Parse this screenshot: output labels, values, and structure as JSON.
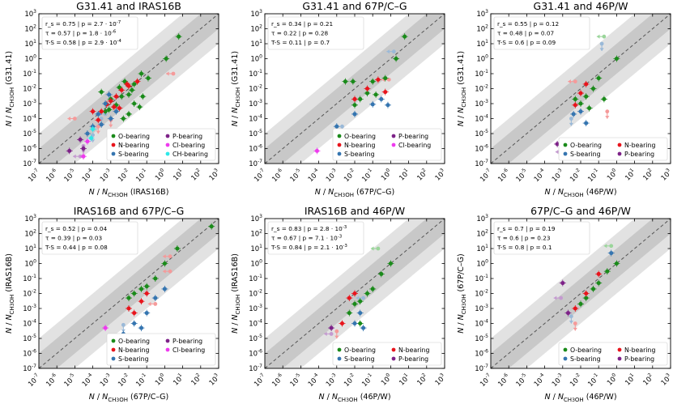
{
  "chart_data": [
    {
      "type": "scatter",
      "title": "G31.41 and IRAS16B",
      "xlabel": "N / N_CH3OH (IRAS16B)",
      "ylabel": "N / N_CH3OH (G31.41)",
      "x_source": "IRAS16B",
      "y_source": "G31.41",
      "xlim": [
        1e-07,
        1000
      ],
      "ylim": [
        1e-07,
        1000
      ],
      "scale": "log",
      "stats": [
        "r_s = 0.75  |  p = 2.7 · 10^-7",
        "τ = 0.57  |  p = 1.8 · 10^-6",
        "T-S = 0.58  |  p = 2.9 · 10^-4"
      ],
      "legend": [
        "O-bearing",
        "N-bearing",
        "S-bearing",
        "P-bearing",
        "Cl-bearing",
        "CH-bearing"
      ],
      "legend_position": "lower-right",
      "points": [
        {
          "x": 6,
          "y": 30,
          "g": "O"
        },
        {
          "x": 1.2,
          "y": 1,
          "g": "O"
        },
        {
          "x": 0.12,
          "y": 0.05,
          "g": "O"
        },
        {
          "x": 0.05,
          "y": 0.1,
          "g": "O"
        },
        {
          "x": 0.02,
          "y": 0.02,
          "g": "O"
        },
        {
          "x": 0.01,
          "y": 0.004,
          "g": "O"
        },
        {
          "x": 0.006,
          "y": 0.03,
          "g": "O"
        },
        {
          "x": 0.004,
          "y": 0.003,
          "g": "O"
        },
        {
          "x": 0.003,
          "y": 0.012,
          "g": "O"
        },
        {
          "x": 0.002,
          "y": 0.0008,
          "g": "O"
        },
        {
          "x": 0.001,
          "y": 0.002,
          "g": "O"
        },
        {
          "x": 0.0008,
          "y": 0.0004,
          "g": "O"
        },
        {
          "x": 0.0005,
          "y": 0.0003,
          "g": "O"
        },
        {
          "x": 0.02,
          "y": 0.001,
          "g": "O"
        },
        {
          "x": 0.01,
          "y": 0.0002,
          "g": "O"
        },
        {
          "x": 0.0003,
          "y": 0.006,
          "g": "O"
        },
        {
          "x": 0.005,
          "y": 0.0001,
          "g": "O"
        },
        {
          "x": 0.06,
          "y": 0.003,
          "g": "O"
        },
        {
          "x": 0.04,
          "y": 0.0006,
          "g": "O"
        },
        {
          "x": 0.015,
          "y": 0.008,
          "g": "O"
        },
        {
          "x": 0.03,
          "y": 0.03,
          "g": "N"
        },
        {
          "x": 0.01,
          "y": 0.015,
          "g": "N"
        },
        {
          "x": 0.004,
          "y": 0.008,
          "g": "N"
        },
        {
          "x": 0.002,
          "y": 0.003,
          "g": "N"
        },
        {
          "x": 0.001,
          "y": 0.0015,
          "g": "N"
        },
        {
          "x": 0.0006,
          "y": 0.0009,
          "g": "N"
        },
        {
          "x": 0.0003,
          "y": 0.0003,
          "g": "N"
        },
        {
          "x": 0.0002,
          "y": 8e-05,
          "g": "N"
        },
        {
          "x": 0.003,
          "y": 0.0005,
          "g": "N"
        },
        {
          "x": 0.008,
          "y": 0.02,
          "g": "N"
        },
        {
          "x": 0.0015,
          "y": 0.0006,
          "g": "N"
        },
        {
          "x": 0.0001,
          "y": 0.0003,
          "g": "N"
        },
        {
          "x": 0.0008,
          "y": 0.004,
          "g": "S"
        },
        {
          "x": 0.0005,
          "y": 0.001,
          "g": "S"
        },
        {
          "x": 0.0002,
          "y": 0.0002,
          "g": "S"
        },
        {
          "x": 0.002,
          "y": 0.0003,
          "g": "S"
        },
        {
          "x": 0.0003,
          "y": 4e-05,
          "g": "S"
        },
        {
          "x": 0.001,
          "y": 0.0001,
          "g": "S"
        },
        {
          "x": 5e-05,
          "y": 1e-05,
          "g": "S"
        },
        {
          "x": 0.0001,
          "y": 3e-05,
          "g": "S"
        },
        {
          "x": 2e-05,
          "y": 4e-06,
          "g": "P"
        },
        {
          "x": 3e-05,
          "y": 1e-06,
          "g": "P"
        },
        {
          "x": 5e-06,
          "y": 7e-07,
          "g": "P"
        },
        {
          "x": 3e-05,
          "y": 3e-07,
          "g": "Cl"
        },
        {
          "x": 5e-05,
          "y": 3e-06,
          "g": "Cl"
        },
        {
          "x": 0.0001,
          "y": 2e-05,
          "g": "CH"
        },
        {
          "x": 8e-05,
          "y": 5e-06,
          "g": "CH"
        }
      ],
      "limits": [
        {
          "x": 3,
          "y": 0.1,
          "g": "N",
          "dir": "left"
        },
        {
          "x": 0.001,
          "y": 8e-05,
          "g": "N",
          "dir": "down"
        },
        {
          "x": 0.0002,
          "y": 3e-05,
          "g": "N",
          "dir": "down"
        },
        {
          "x": 1e-05,
          "y": 0.0001,
          "g": "N",
          "dir": "left"
        },
        {
          "x": 0.0003,
          "y": 0.0001,
          "g": "S",
          "dir": "down"
        },
        {
          "x": 0.0001,
          "y": 8e-06,
          "g": "S",
          "dir": "down"
        },
        {
          "x": 0.0005,
          "y": 0.0002,
          "g": "S",
          "dir": "left"
        },
        {
          "x": 3e-05,
          "y": 1.5e-06,
          "g": "P",
          "dir": "down"
        },
        {
          "x": 2e-05,
          "y": 3e-07,
          "g": "P",
          "dir": "left"
        }
      ]
    },
    {
      "type": "scatter",
      "title": "G31.41 and 67P/C–G",
      "xlabel": "N / N_CH3OH (67P/C–G)",
      "ylabel": "N / N_CH3OH (G31.41)",
      "x_source": "67P/C–G",
      "y_source": "G31.41",
      "xlim": [
        1e-07,
        1000
      ],
      "ylim": [
        1e-07,
        1000
      ],
      "scale": "log",
      "stats": [
        "r_s = 0.34  |  p = 0.21",
        "τ = 0.22  |  p = 0.28",
        "T-S = 0.11  |  p = 0.7"
      ],
      "legend": [
        "O-bearing",
        "N-bearing",
        "S-bearing",
        "P-bearing",
        "Cl-bearing"
      ],
      "legend_position": "lower-right",
      "points": [
        {
          "x": 6,
          "y": 30,
          "g": "O"
        },
        {
          "x": 2,
          "y": 1,
          "g": "O"
        },
        {
          "x": 0.5,
          "y": 0.05,
          "g": "O"
        },
        {
          "x": 0.1,
          "y": 0.03,
          "g": "O"
        },
        {
          "x": 0.05,
          "y": 0.005,
          "g": "O"
        },
        {
          "x": 0.008,
          "y": 0.03,
          "g": "O"
        },
        {
          "x": 0.02,
          "y": 0.002,
          "g": "O"
        },
        {
          "x": 0.003,
          "y": 0.03,
          "g": "O"
        },
        {
          "x": 0.01,
          "y": 0.0008,
          "g": "O"
        },
        {
          "x": 0.15,
          "y": 0.004,
          "g": "O"
        },
        {
          "x": 0.2,
          "y": 0.04,
          "g": "N"
        },
        {
          "x": 0.05,
          "y": 0.01,
          "g": "N"
        },
        {
          "x": 0.5,
          "y": 0.006,
          "g": "N"
        },
        {
          "x": 0.01,
          "y": 0.002,
          "g": "N"
        },
        {
          "x": 0.3,
          "y": 0.002,
          "g": "S"
        },
        {
          "x": 0.7,
          "y": 0.0008,
          "g": "S"
        },
        {
          "x": 0.1,
          "y": 0.0009,
          "g": "S"
        },
        {
          "x": 0.01,
          "y": 0.0002,
          "g": "S"
        },
        {
          "x": 0.003,
          "y": 1e-05,
          "g": "S"
        },
        {
          "x": 0.001,
          "y": 3e-05,
          "g": "S"
        },
        {
          "x": 8e-05,
          "y": 7e-07,
          "g": "Cl"
        }
      ],
      "limits": [
        {
          "x": 1.5,
          "y": 3,
          "g": "S",
          "dir": "left"
        },
        {
          "x": 0.8,
          "y": 0.04,
          "g": "N",
          "dir": "left"
        },
        {
          "x": 0.002,
          "y": 3e-05,
          "g": "S",
          "dir": "down"
        },
        {
          "x": 0.005,
          "y": 5e-06,
          "g": "S",
          "dir": "down"
        }
      ]
    },
    {
      "type": "scatter",
      "title": "G31.41 and 46P/W",
      "xlabel": "N / N_CH3OH (46P/W)",
      "ylabel": "N / N_CH3OH (G31.41)",
      "x_source": "46P/W",
      "y_source": "G31.41",
      "xlim": [
        1e-07,
        1000
      ],
      "ylim": [
        1e-07,
        1000
      ],
      "scale": "log",
      "stats": [
        "r_s = 0.55  |  p = 0.12",
        "τ = 0.48  |  p = 0.07",
        "T-S = 0.6  |  p = 0.09"
      ],
      "legend": [
        "O-bearing",
        "S-bearing",
        "N-bearing",
        "P-bearing"
      ],
      "legend_position": "lower-right",
      "points": [
        {
          "x": 1,
          "y": 1,
          "g": "O"
        },
        {
          "x": 0.1,
          "y": 0.05,
          "g": "O"
        },
        {
          "x": 0.05,
          "y": 0.01,
          "g": "O"
        },
        {
          "x": 0.02,
          "y": 0.003,
          "g": "O"
        },
        {
          "x": 0.01,
          "y": 0.001,
          "g": "O"
        },
        {
          "x": 0.005,
          "y": 0.002,
          "g": "O"
        },
        {
          "x": 0.03,
          "y": 0.0005,
          "g": "O"
        },
        {
          "x": 0.2,
          "y": 0.002,
          "g": "O"
        },
        {
          "x": 0.02,
          "y": 0.02,
          "g": "N"
        },
        {
          "x": 0.01,
          "y": 0.005,
          "g": "N"
        },
        {
          "x": 0.005,
          "y": 0.0008,
          "g": "N"
        },
        {
          "x": 0.01,
          "y": 0.0003,
          "g": "S"
        },
        {
          "x": 0.004,
          "y": 0.0002,
          "g": "S"
        },
        {
          "x": 0.02,
          "y": 5e-05,
          "g": "S"
        },
        {
          "x": 0.0005,
          "y": 2e-06,
          "g": "P"
        }
      ],
      "limits": [
        {
          "x": 0.2,
          "y": 30,
          "g": "O",
          "dir": "left"
        },
        {
          "x": 0.15,
          "y": 10,
          "g": "S",
          "dir": "down"
        },
        {
          "x": 0.005,
          "y": 0.03,
          "g": "N",
          "dir": "left"
        },
        {
          "x": 0.3,
          "y": 0.0003,
          "g": "N",
          "dir": "down"
        },
        {
          "x": 0.0008,
          "y": 1.5e-06,
          "g": "P",
          "dir": "down"
        },
        {
          "x": 0.001,
          "y": 6e-07,
          "g": "P",
          "dir": "left"
        },
        {
          "x": 0.003,
          "y": 0.0001,
          "g": "S",
          "dir": "down"
        }
      ]
    },
    {
      "type": "scatter",
      "title": "IRAS16B and 67P/C–G",
      "xlabel": "N / N_CH3OH (67P/C–G)",
      "ylabel": "N / N_CH3OH (IRAS16B)",
      "x_source": "67P/C–G",
      "y_source": "IRAS16B",
      "xlim": [
        1e-07,
        1000
      ],
      "ylim": [
        1e-07,
        1000
      ],
      "scale": "log",
      "stats": [
        "r_s = 0.52  |  p = 0.04",
        "τ = 0.39  |  p = 0.03",
        "T-S = 0.44  |  p = 0.08"
      ],
      "legend": [
        "O-bearing",
        "N-bearing",
        "S-bearing",
        "P-bearing",
        "Cl-bearing"
      ],
      "legend_position": "lower-right",
      "points": [
        {
          "x": 400,
          "y": 300,
          "g": "O"
        },
        {
          "x": 5,
          "y": 10,
          "g": "O"
        },
        {
          "x": 1,
          "y": 1,
          "g": "O"
        },
        {
          "x": 0.3,
          "y": 0.1,
          "g": "O"
        },
        {
          "x": 0.1,
          "y": 0.03,
          "g": "O"
        },
        {
          "x": 0.05,
          "y": 0.02,
          "g": "O"
        },
        {
          "x": 0.02,
          "y": 0.01,
          "g": "O"
        },
        {
          "x": 0.01,
          "y": 0.005,
          "g": "O"
        },
        {
          "x": 0.1,
          "y": 0.01,
          "g": "N"
        },
        {
          "x": 0.05,
          "y": 0.003,
          "g": "N"
        },
        {
          "x": 0.01,
          "y": 0.001,
          "g": "N"
        },
        {
          "x": 0.02,
          "y": 0.0005,
          "g": "N"
        },
        {
          "x": 1,
          "y": 0.02,
          "g": "S"
        },
        {
          "x": 0.3,
          "y": 0.005,
          "g": "S"
        },
        {
          "x": 0.1,
          "y": 0.0005,
          "g": "S"
        },
        {
          "x": 0.02,
          "y": 0.0001,
          "g": "S"
        },
        {
          "x": 0.05,
          "y": 5e-05,
          "g": "S"
        },
        {
          "x": 0.005,
          "y": 2e-05,
          "g": "S"
        },
        {
          "x": 0.0005,
          "y": 5e-05,
          "g": "Cl"
        }
      ],
      "limits": [
        {
          "x": 2,
          "y": 3,
          "g": "N",
          "dir": "left"
        },
        {
          "x": 2,
          "y": 0.3,
          "g": "N",
          "dir": "left"
        },
        {
          "x": 0.3,
          "y": 0.002,
          "g": "N",
          "dir": "left"
        },
        {
          "x": 0.005,
          "y": 8e-05,
          "g": "S",
          "dir": "down"
        }
      ]
    },
    {
      "type": "scatter",
      "title": "IRAS16B and 46P/W",
      "xlabel": "N / N_CH3OH (46P/W)",
      "ylabel": "N / N_CH3OH (IRAS16B)",
      "x_source": "46P/W",
      "y_source": "IRAS16B",
      "xlim": [
        1e-07,
        1000
      ],
      "ylim": [
        1e-07,
        1000
      ],
      "scale": "log",
      "stats": [
        "r_s = 0.83  |  p = 2.8 · 10^-3",
        "τ = 0.67  |  p = 7.1 · 10^-3",
        "T-S = 0.84  |  p = 2.1 · 10^-3"
      ],
      "legend": [
        "O-bearing",
        "S-bearing",
        "N-bearing",
        "P-bearing"
      ],
      "legend_position": "lower-right",
      "points": [
        {
          "x": 1,
          "y": 1,
          "g": "O"
        },
        {
          "x": 0.3,
          "y": 0.2,
          "g": "O"
        },
        {
          "x": 0.1,
          "y": 0.02,
          "g": "O"
        },
        {
          "x": 0.05,
          "y": 0.01,
          "g": "O"
        },
        {
          "x": 0.02,
          "y": 0.003,
          "g": "O"
        },
        {
          "x": 0.01,
          "y": 0.002,
          "g": "O"
        },
        {
          "x": 0.005,
          "y": 0.0005,
          "g": "O"
        },
        {
          "x": 0.02,
          "y": 0.0001,
          "g": "O"
        },
        {
          "x": 0.01,
          "y": 0.01,
          "g": "N"
        },
        {
          "x": 0.005,
          "y": 0.005,
          "g": "N"
        },
        {
          "x": 0.002,
          "y": 0.0001,
          "g": "N"
        },
        {
          "x": 0.02,
          "y": 0.0005,
          "g": "S"
        },
        {
          "x": 0.01,
          "y": 0.0001,
          "g": "S"
        },
        {
          "x": 0.03,
          "y": 5e-05,
          "g": "S"
        },
        {
          "x": 0.0005,
          "y": 5e-05,
          "g": "P"
        }
      ],
      "limits": [
        {
          "x": 0.2,
          "y": 10,
          "g": "O",
          "dir": "left"
        },
        {
          "x": 0.03,
          "y": 0.005,
          "g": "S",
          "dir": "left"
        },
        {
          "x": 0.001,
          "y": 3e-05,
          "g": "N",
          "dir": "down"
        },
        {
          "x": 0.0008,
          "y": 1.5e-06,
          "g": "P",
          "dir": "down"
        },
        {
          "x": 0.0005,
          "y": 2e-05,
          "g": "P",
          "dir": "left"
        }
      ]
    },
    {
      "type": "scatter",
      "title": "67P/C–G and 46P/W",
      "xlabel": "N / N_CH3OH (46P/W)",
      "ylabel": "N / N_CH3OH (67P/C–G)",
      "x_source": "46P/W",
      "y_source": "67P/C–G",
      "xlim": [
        1e-07,
        1000
      ],
      "ylim": [
        1e-07,
        1000
      ],
      "scale": "log",
      "stats": [
        "r_s = 0.7  |  p = 0.19",
        "τ = 0.6  |  p = 0.23",
        "T-S = 0.8  |  p = 0.1"
      ],
      "legend": [
        "O-bearing",
        "S-bearing",
        "N-bearing",
        "P-bearing"
      ],
      "legend_position": "lower-right",
      "points": [
        {
          "x": 1,
          "y": 1,
          "g": "O"
        },
        {
          "x": 0.3,
          "y": 0.3,
          "g": "O"
        },
        {
          "x": 0.1,
          "y": 0.05,
          "g": "O"
        },
        {
          "x": 0.05,
          "y": 0.02,
          "g": "O"
        },
        {
          "x": 0.02,
          "y": 0.005,
          "g": "O"
        },
        {
          "x": 0.01,
          "y": 0.002,
          "g": "O"
        },
        {
          "x": 0.1,
          "y": 0.2,
          "g": "N"
        },
        {
          "x": 0.02,
          "y": 0.01,
          "g": "N"
        },
        {
          "x": 0.005,
          "y": 0.001,
          "g": "N"
        },
        {
          "x": 0.5,
          "y": 5,
          "g": "S"
        },
        {
          "x": 0.001,
          "y": 0.05,
          "g": "P"
        },
        {
          "x": 0.002,
          "y": 0.0005,
          "g": "P"
        }
      ],
      "limits": [
        {
          "x": 0.5,
          "y": 15,
          "g": "O",
          "dir": "left"
        },
        {
          "x": 0.005,
          "y": 0.0001,
          "g": "N",
          "dir": "down"
        },
        {
          "x": 0.0008,
          "y": 0.005,
          "g": "P",
          "dir": "left"
        },
        {
          "x": 0.003,
          "y": 0.0003,
          "g": "S",
          "dir": "down"
        }
      ]
    }
  ],
  "legend_labels": {
    "O": "O-bearing",
    "N": "N-bearing",
    "S": "S-bearing",
    "P": "P-bearing",
    "Cl": "Cl-bearing",
    "CH": "CH-bearing"
  },
  "colors": {
    "O": "#1a8a1a",
    "N": "#e8141c",
    "S": "#3575b0",
    "P": "#7d2288",
    "Cl": "#ee3aee",
    "CH": "#2ee8e8",
    "O_limit": "#9ad59a",
    "N_limit": "#f59a9a",
    "S_limit": "#9ab9d8",
    "P_limit": "#c49ad0",
    "band_outer": "#e2e2e2",
    "band_inner": "#c8c8c8",
    "diagonal": "#555555"
  },
  "tick_exponents": [
    -7,
    -6,
    -5,
    -4,
    -3,
    -2,
    -1,
    0,
    1,
    2,
    3
  ]
}
